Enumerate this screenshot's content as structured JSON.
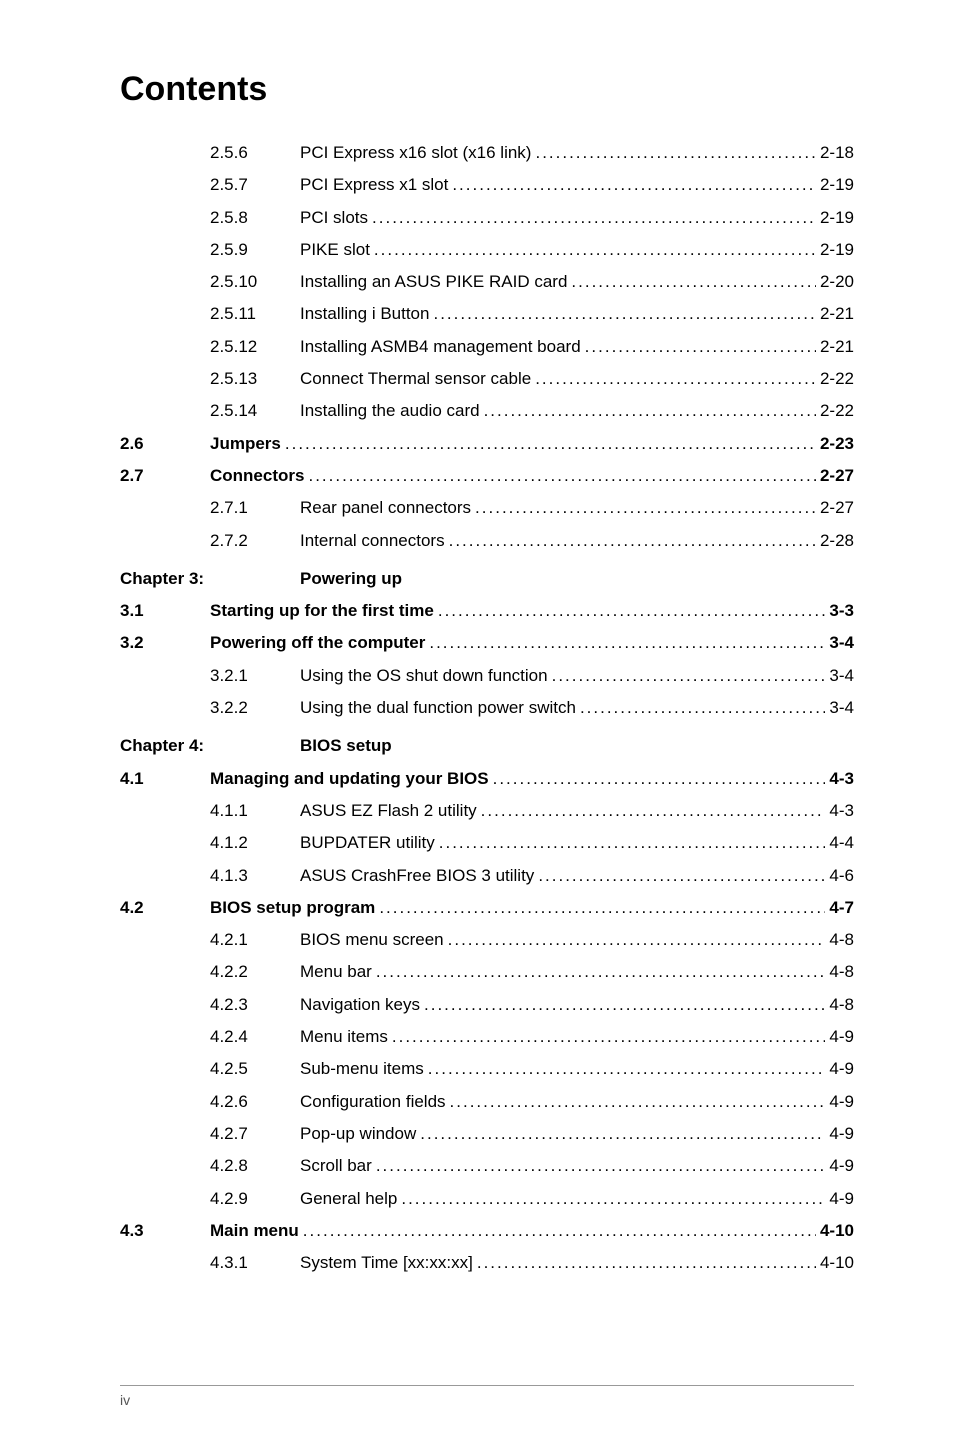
{
  "title": "Contents",
  "lines": [
    {
      "type": "entry",
      "bold": false,
      "num": "",
      "sub": "2.5.6",
      "label": "PCI Express x16 slot (x16 link)",
      "page": "2-18"
    },
    {
      "type": "entry",
      "bold": false,
      "num": "",
      "sub": "2.5.7",
      "label": "PCI Express x1 slot",
      "page": "2-19"
    },
    {
      "type": "entry",
      "bold": false,
      "num": "",
      "sub": "2.5.8",
      "label": "PCI slots",
      "page": "2-19"
    },
    {
      "type": "entry",
      "bold": false,
      "num": "",
      "sub": "2.5.9",
      "label": "PIKE slot",
      "page": "2-19"
    },
    {
      "type": "entry",
      "bold": false,
      "num": "",
      "sub": "2.5.10",
      "label": "Installing an ASUS PIKE RAID card",
      "page": "2-20"
    },
    {
      "type": "entry",
      "bold": false,
      "num": "",
      "sub": "2.5.11",
      "label": "Installing i Button",
      "page": "2-21"
    },
    {
      "type": "entry",
      "bold": false,
      "num": "",
      "sub": "2.5.12",
      "label": "Installing ASMB4 management board",
      "page": "2-21"
    },
    {
      "type": "entry",
      "bold": false,
      "num": "",
      "sub": "2.5.13",
      "label": "Connect Thermal sensor cable",
      "page": "2-22"
    },
    {
      "type": "entry",
      "bold": false,
      "num": "",
      "sub": "2.5.14",
      "label": "Installing the audio card",
      "page": "2-22"
    },
    {
      "type": "entry",
      "bold": true,
      "num": "2.6",
      "sub": "",
      "label": "Jumpers",
      "page": "2-23"
    },
    {
      "type": "entry",
      "bold": true,
      "num": "2.7",
      "sub": "",
      "label": "Connectors",
      "page": "2-27"
    },
    {
      "type": "entry",
      "bold": false,
      "num": "",
      "sub": "2.7.1",
      "label": "Rear panel connectors",
      "page": "2-27"
    },
    {
      "type": "entry",
      "bold": false,
      "num": "",
      "sub": "2.7.2",
      "label": "Internal connectors",
      "page": "2-28"
    },
    {
      "type": "chapter",
      "ch": "Chapter 3:",
      "title": "Powering up"
    },
    {
      "type": "entry",
      "bold": true,
      "num": "3.1",
      "sub": "",
      "label": "Starting up for the first time",
      "page": "3-3"
    },
    {
      "type": "entry",
      "bold": true,
      "num": "3.2",
      "sub": "",
      "label": "Powering off the computer",
      "page": "3-4"
    },
    {
      "type": "entry",
      "bold": false,
      "num": "",
      "sub": "3.2.1",
      "label": "Using the OS shut down function",
      "page": "3-4"
    },
    {
      "type": "entry",
      "bold": false,
      "num": "",
      "sub": "3.2.2",
      "label": "Using the dual function power switch",
      "page": "3-4"
    },
    {
      "type": "chapter",
      "ch": "Chapter 4:",
      "title": "BIOS setup"
    },
    {
      "type": "entry",
      "bold": true,
      "num": "4.1",
      "sub": "",
      "label": "Managing and updating your BIOS",
      "page": "4-3"
    },
    {
      "type": "entry",
      "bold": false,
      "num": "",
      "sub": "4.1.1",
      "label": "ASUS EZ Flash 2 utility",
      "page": "4-3"
    },
    {
      "type": "entry",
      "bold": false,
      "num": "",
      "sub": "4.1.2",
      "label": "BUPDATER utility",
      "page": "4-4"
    },
    {
      "type": "entry",
      "bold": false,
      "num": "",
      "sub": "4.1.3",
      "label": "ASUS CrashFree BIOS 3 utility",
      "page": "4-6"
    },
    {
      "type": "entry",
      "bold": true,
      "num": "4.2",
      "sub": "",
      "label": "BIOS setup program",
      "page": "4-7"
    },
    {
      "type": "entry",
      "bold": false,
      "num": "",
      "sub": "4.2.1",
      "label": "BIOS menu screen",
      "page": "4-8"
    },
    {
      "type": "entry",
      "bold": false,
      "num": "",
      "sub": "4.2.2",
      "label": "Menu bar",
      "page": "4-8"
    },
    {
      "type": "entry",
      "bold": false,
      "num": "",
      "sub": "4.2.3",
      "label": "Navigation keys",
      "page": "4-8"
    },
    {
      "type": "entry",
      "bold": false,
      "num": "",
      "sub": "4.2.4",
      "label": "Menu items",
      "page": "4-9"
    },
    {
      "type": "entry",
      "bold": false,
      "num": "",
      "sub": "4.2.5",
      "label": "Sub-menu items",
      "page": "4-9"
    },
    {
      "type": "entry",
      "bold": false,
      "num": "",
      "sub": "4.2.6",
      "label": "Configuration fields",
      "page": "4-9"
    },
    {
      "type": "entry",
      "bold": false,
      "num": "",
      "sub": "4.2.7",
      "label": "Pop-up window",
      "page": "4-9"
    },
    {
      "type": "entry",
      "bold": false,
      "num": "",
      "sub": "4.2.8",
      "label": "Scroll bar",
      "page": "4-9"
    },
    {
      "type": "entry",
      "bold": false,
      "num": "",
      "sub": "4.2.9",
      "label": "General help",
      "page": "4-9"
    },
    {
      "type": "entry",
      "bold": true,
      "num": "4.3",
      "sub": "",
      "label": "Main menu",
      "page": "4-10"
    },
    {
      "type": "entry",
      "bold": false,
      "num": "",
      "sub": "4.3.1",
      "label": "System Time [xx:xx:xx]",
      "page": "4-10"
    }
  ],
  "footer": "iv"
}
